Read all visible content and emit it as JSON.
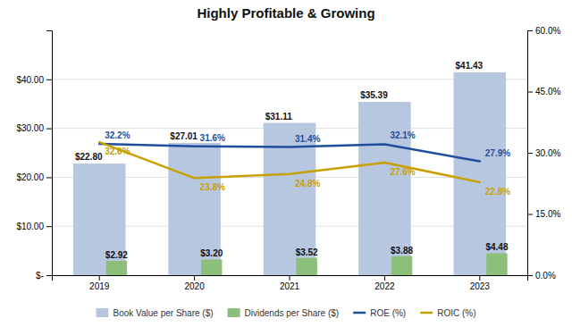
{
  "chart_data": {
    "type": "bar",
    "title": "Highly Profitable & Growing",
    "categories": [
      "2019",
      "2020",
      "2021",
      "2022",
      "2023"
    ],
    "series": [
      {
        "name": "Book Value per Share ($)",
        "type": "bar",
        "color": "#b8c7e0",
        "values": [
          22.8,
          27.01,
          31.11,
          35.39,
          41.43
        ],
        "value_labels": [
          "$22.80",
          "$27.01",
          "$31.11",
          "$35.39",
          "$41.43"
        ]
      },
      {
        "name": "Dividends per Share ($)",
        "type": "bar",
        "color": "#8cbf7a",
        "values": [
          2.92,
          3.2,
          3.52,
          3.88,
          4.48
        ],
        "value_labels": [
          "$2.92",
          "$3.20",
          "$3.52",
          "$3.88",
          "$4.48"
        ]
      },
      {
        "name": "ROE (%)",
        "type": "line",
        "axis": "y2",
        "color": "#1f4e9c",
        "values": [
          32.2,
          31.6,
          31.4,
          32.1,
          27.9
        ],
        "value_labels": [
          "32.2%",
          "31.6%",
          "31.4%",
          "32.1%",
          "27.9%"
        ]
      },
      {
        "name": "ROIC (%)",
        "type": "line",
        "axis": "y2",
        "color": "#c8a000",
        "values": [
          32.6,
          23.8,
          24.8,
          27.6,
          22.8
        ],
        "value_labels": [
          "32.6%",
          "23.8%",
          "24.8%",
          "27.6%",
          "22.8%"
        ]
      }
    ],
    "ylim": [
      0,
      50
    ],
    "yticks": [
      {
        "value": 0,
        "label": "$-"
      },
      {
        "value": 10,
        "label": "$10.00"
      },
      {
        "value": 20,
        "label": "$20.00"
      },
      {
        "value": 30,
        "label": "$30.00"
      },
      {
        "value": 40,
        "label": "$40.00"
      }
    ],
    "y2lim": [
      0,
      60
    ],
    "y2ticks": [
      {
        "value": 0,
        "label": "0.0%"
      },
      {
        "value": 15,
        "label": "15.0%"
      },
      {
        "value": 30,
        "label": "30.0%"
      },
      {
        "value": 45,
        "label": "45.0%"
      },
      {
        "value": 60,
        "label": "60.0%"
      }
    ],
    "grid": true,
    "legend": "bottom",
    "data_labels": true
  }
}
